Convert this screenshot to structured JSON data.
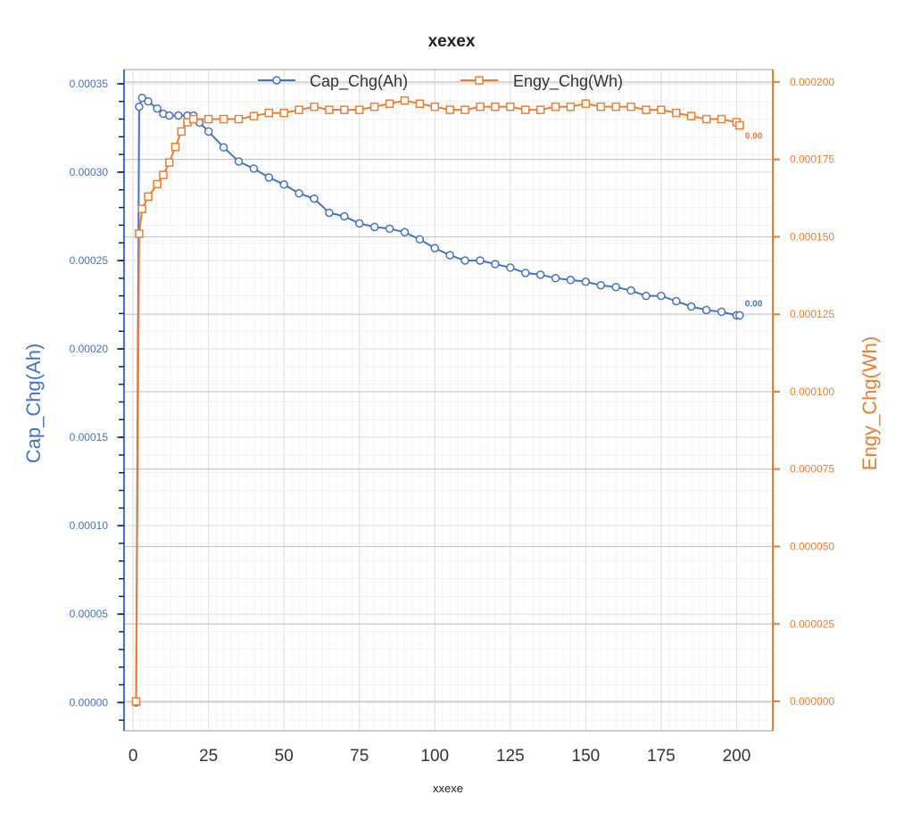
{
  "chart_data": {
    "type": "line",
    "title": "xexex",
    "xlabel": "xxexe",
    "ylabel_left": "Cap_Chg(Ah)",
    "ylabel_right": "Engy_Chg(Wh)",
    "xlim": [
      -3,
      212
    ],
    "xticks": [
      "0",
      "25",
      "50",
      "75",
      "100",
      "125",
      "150",
      "175",
      "200"
    ],
    "ylim_left": [
      -1.6e-05,
      0.000358
    ],
    "ylim_right": [
      -9.5e-06,
      0.000204
    ],
    "yticks_left": [
      "0.00000",
      "0.00005",
      "0.00010",
      "0.00015",
      "0.00020",
      "0.00025",
      "0.00030",
      "0.00035"
    ],
    "yticks_right": [
      "0.000000",
      "0.000025",
      "0.000050",
      "0.000075",
      "0.000100",
      "0.000125",
      "0.000150",
      "0.000175",
      "0.000200"
    ],
    "grid": true,
    "legend_position": "top-center",
    "series": [
      {
        "name": "Cap_Chg(Ah)",
        "axis": "left",
        "color": "#4472c4",
        "marker": "circle",
        "end_label": "0.00",
        "points": [
          [
            1,
            0.0
          ],
          [
            2,
            0.000337
          ],
          [
            3,
            0.000342
          ],
          [
            5,
            0.00034
          ],
          [
            8,
            0.000336
          ],
          [
            10,
            0.000333
          ],
          [
            12,
            0.000332
          ],
          [
            15,
            0.000332
          ],
          [
            18,
            0.000332
          ],
          [
            20,
            0.000332
          ],
          [
            22,
            0.000328
          ],
          [
            25,
            0.000323
          ],
          [
            30,
            0.000314
          ],
          [
            35,
            0.000306
          ],
          [
            40,
            0.000302
          ],
          [
            45,
            0.000297
          ],
          [
            50,
            0.000293
          ],
          [
            55,
            0.000288
          ],
          [
            60,
            0.000285
          ],
          [
            65,
            0.000277
          ],
          [
            70,
            0.000275
          ],
          [
            75,
            0.000271
          ],
          [
            80,
            0.000269
          ],
          [
            85,
            0.000268
          ],
          [
            90,
            0.000266
          ],
          [
            95,
            0.000262
          ],
          [
            100,
            0.000257
          ],
          [
            105,
            0.000253
          ],
          [
            110,
            0.00025
          ],
          [
            115,
            0.00025
          ],
          [
            120,
            0.000248
          ],
          [
            125,
            0.000246
          ],
          [
            130,
            0.000243
          ],
          [
            135,
            0.000242
          ],
          [
            140,
            0.00024
          ],
          [
            145,
            0.000239
          ],
          [
            150,
            0.000238
          ],
          [
            155,
            0.000236
          ],
          [
            160,
            0.000235
          ],
          [
            165,
            0.000233
          ],
          [
            170,
            0.00023
          ],
          [
            175,
            0.00023
          ],
          [
            180,
            0.000227
          ],
          [
            185,
            0.000224
          ],
          [
            190,
            0.000222
          ],
          [
            195,
            0.000221
          ],
          [
            200,
            0.000219
          ],
          [
            201,
            0.000219
          ]
        ]
      },
      {
        "name": "Engy_Chg(Wh)",
        "axis": "right",
        "color": "#ed7d31",
        "marker": "square",
        "end_label": "0.00",
        "points": [
          [
            1,
            0.0
          ],
          [
            2,
            0.000151
          ],
          [
            3,
            0.000159
          ],
          [
            5,
            0.000163
          ],
          [
            8,
            0.000167
          ],
          [
            10,
            0.00017
          ],
          [
            12,
            0.000174
          ],
          [
            14,
            0.000179
          ],
          [
            16,
            0.000184
          ],
          [
            18,
            0.000187
          ],
          [
            20,
            0.000188
          ],
          [
            25,
            0.000188
          ],
          [
            30,
            0.000188
          ],
          [
            35,
            0.000188
          ],
          [
            40,
            0.000189
          ],
          [
            45,
            0.00019
          ],
          [
            50,
            0.00019
          ],
          [
            55,
            0.000191
          ],
          [
            60,
            0.000192
          ],
          [
            65,
            0.000191
          ],
          [
            70,
            0.000191
          ],
          [
            75,
            0.000191
          ],
          [
            80,
            0.000192
          ],
          [
            85,
            0.000193
          ],
          [
            90,
            0.000194
          ],
          [
            95,
            0.000193
          ],
          [
            100,
            0.000192
          ],
          [
            105,
            0.000191
          ],
          [
            110,
            0.000191
          ],
          [
            115,
            0.000192
          ],
          [
            120,
            0.000192
          ],
          [
            125,
            0.000192
          ],
          [
            130,
            0.000191
          ],
          [
            135,
            0.000191
          ],
          [
            140,
            0.000192
          ],
          [
            145,
            0.000192
          ],
          [
            150,
            0.000193
          ],
          [
            155,
            0.000192
          ],
          [
            160,
            0.000192
          ],
          [
            165,
            0.000192
          ],
          [
            170,
            0.000191
          ],
          [
            175,
            0.000191
          ],
          [
            180,
            0.00019
          ],
          [
            185,
            0.000189
          ],
          [
            190,
            0.000188
          ],
          [
            195,
            0.000188
          ],
          [
            200,
            0.000187
          ],
          [
            201,
            0.000186
          ]
        ]
      }
    ]
  }
}
